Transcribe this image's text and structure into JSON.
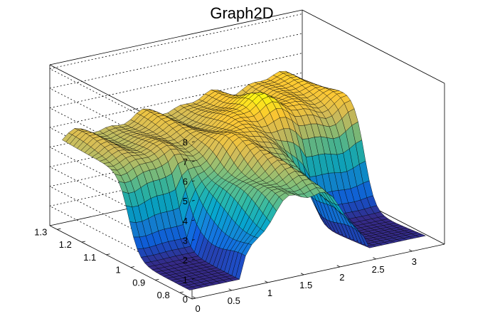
{
  "chart_data": {
    "type": "surface",
    "title": "Graph2D",
    "x_ticks": [
      "0",
      "0.5",
      "1",
      "1.5",
      "2",
      "2.5",
      "3"
    ],
    "y_ticks": [
      "0.8",
      "0.9",
      "1",
      "1.1",
      "1.2",
      "1.3"
    ],
    "z_ticks": [
      "0",
      "1",
      "2",
      "3",
      "4",
      "5",
      "6",
      "7",
      "8"
    ],
    "xlim": [
      -0.05,
      3.45
    ],
    "ylim": [
      0.75,
      1.33
    ],
    "zlim": [
      0,
      8.2
    ],
    "grid": true,
    "colormap": [
      "#352a87",
      "#0f5cdd",
      "#1481d6",
      "#06a4ca",
      "#2eb7a4",
      "#87bf77",
      "#d1bb59",
      "#fec832",
      "#f9fb0e"
    ],
    "surface_description": "Plateau at z about 4.5-6 over y above 1.05; at lower y the surface drops to z about 0 for x between 0 and 0.8 and above 2.4, with an arched tunnel rising to about 5 between x 0.8 and 2.4."
  }
}
